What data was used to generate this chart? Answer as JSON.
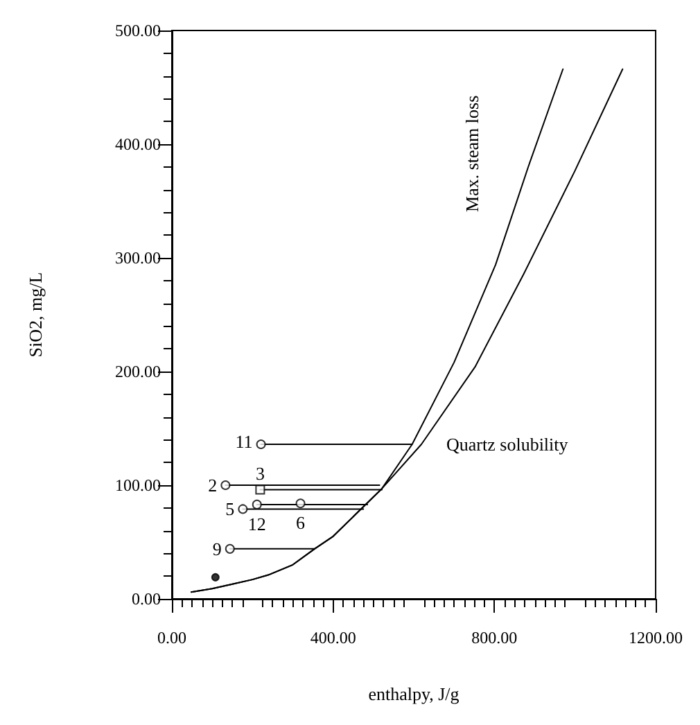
{
  "chart_data": {
    "type": "line",
    "xlabel": "enthalpy, J/g",
    "ylabel": "SiO2, mg/L",
    "xlim": [
      0,
      1200
    ],
    "xticks": [
      {
        "value": 0,
        "label": "0.00"
      },
      {
        "value": 400,
        "label": "400.00"
      },
      {
        "value": 800,
        "label": "800.00"
      },
      {
        "value": 1200,
        "label": "1200.00"
      }
    ],
    "ylim": [
      0,
      500
    ],
    "yticks": [
      {
        "value": 0,
        "label": "0.00"
      },
      {
        "value": 100,
        "label": "100.00"
      },
      {
        "value": 200,
        "label": "200.00"
      },
      {
        "value": 300,
        "label": "300.00"
      },
      {
        "value": 400,
        "label": "400.00"
      },
      {
        "value": 500,
        "label": "500.00"
      }
    ],
    "grid": false,
    "marker": "none",
    "line_style": "solid",
    "series": [
      {
        "name": "Quartz solubility",
        "color": "#000000",
        "x": [
          48,
          100,
          150,
          200,
          239,
          300,
          354,
          400,
          469,
          521,
          619,
          752,
          873,
          999,
          1118
        ],
        "values": [
          6,
          9,
          13,
          17,
          21,
          30,
          44,
          55,
          79,
          97,
          136,
          204,
          286,
          376,
          466
        ]
      },
      {
        "name": "Max. steam loss",
        "color": "#000000",
        "x": [
          48,
          100,
          150,
          200,
          239,
          300,
          354,
          400,
          469,
          521,
          596,
          700,
          803,
          884,
          970
        ],
        "values": [
          6,
          9,
          13,
          17,
          21,
          30,
          44,
          55,
          79,
          97,
          136,
          208,
          294,
          380,
          466
        ]
      },
      {
        "color": "#000000",
        "x": [
          221,
          596
        ],
        "values": [
          136,
          136
        ]
      },
      {
        "color": "#000000",
        "x": [
          133,
          515
        ],
        "values": [
          100,
          100
        ]
      },
      {
        "color": "#000000",
        "x": [
          219,
          521
        ],
        "values": [
          96,
          96
        ]
      },
      {
        "color": "#000000",
        "x": [
          176,
          475
        ],
        "values": [
          79,
          79
        ]
      },
      {
        "color": "#000000",
        "x": [
          211,
          485
        ],
        "values": [
          83,
          83
        ]
      },
      {
        "color": "#000000",
        "x": [
          144,
          354
        ],
        "values": [
          44,
          44
        ]
      },
      {
        "type": "scatter",
        "marker": "circle",
        "color": "#000000",
        "x": [
          221,
          133,
          176,
          144
        ],
        "values": [
          136,
          100,
          79,
          44
        ]
      },
      {
        "type": "scatter",
        "marker": "square",
        "color": "#000000",
        "x": [
          219
        ],
        "values": [
          96
        ]
      },
      {
        "type": "scatter",
        "marker": "circle",
        "color": "#000000",
        "x": [
          211,
          319
        ],
        "values": [
          83,
          84
        ]
      },
      {
        "type": "scatter",
        "marker": "circle",
        "color": "#000000",
        "x": [
          108
        ],
        "values": [
          19
        ]
      }
    ],
    "annotations": [
      {
        "text": "11",
        "x": 221,
        "y": 136
      },
      {
        "text": "2",
        "x": 133,
        "y": 100
      },
      {
        "text": "5",
        "x": 176,
        "y": 79
      },
      {
        "text": "9",
        "x": 144,
        "y": 44
      },
      {
        "text": "12",
        "x": 211,
        "y": 83
      },
      {
        "text": "6",
        "x": 319,
        "y": 84
      },
      {
        "text": "3",
        "x": 219,
        "y": 96
      }
    ]
  }
}
